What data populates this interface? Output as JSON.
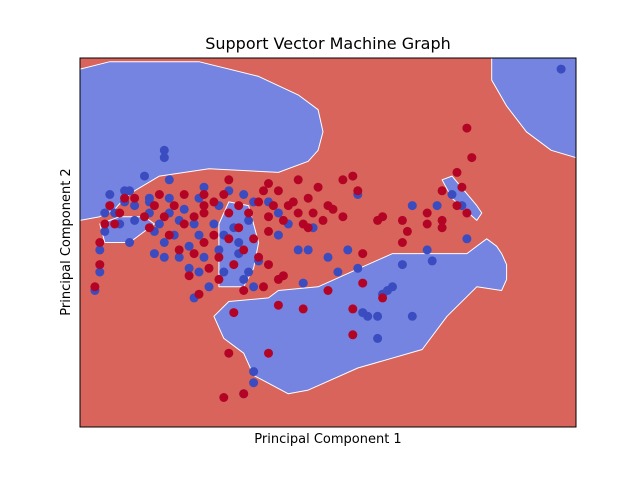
{
  "chart_data": {
    "type": "scatter",
    "title": "Support Vector Machine Graph",
    "xlabel": "Principal Component 1",
    "ylabel": "Principal Component 2",
    "xlim": [
      0,
      100
    ],
    "ylim": [
      0,
      100
    ],
    "x_ticks": false,
    "y_ticks": false,
    "grid": false,
    "background_region_color": "#d8645b",
    "decision_region_color": "#7484e0",
    "decision_regions": [
      [
        [
          0,
          56
        ],
        [
          0,
          97
        ],
        [
          6,
          99
        ],
        [
          24,
          99
        ],
        [
          36,
          95
        ],
        [
          44,
          90
        ],
        [
          48,
          86
        ],
        [
          49,
          80
        ],
        [
          48,
          75
        ],
        [
          46,
          72
        ],
        [
          40,
          69
        ],
        [
          26,
          70
        ],
        [
          16,
          68
        ],
        [
          11,
          64
        ],
        [
          9,
          62
        ],
        [
          7,
          59
        ],
        [
          4,
          57
        ]
      ],
      [
        [
          83,
          100
        ],
        [
          100,
          100
        ],
        [
          100,
          73
        ],
        [
          95,
          75
        ],
        [
          90,
          80
        ],
        [
          86,
          87
        ],
        [
          83,
          94
        ]
      ],
      [
        [
          27,
          30
        ],
        [
          29,
          24
        ],
        [
          31,
          22
        ],
        [
          33,
          20
        ],
        [
          35,
          14
        ],
        [
          42,
          9
        ],
        [
          46,
          10
        ],
        [
          56,
          16
        ],
        [
          69,
          21
        ],
        [
          74,
          30
        ],
        [
          80,
          38
        ],
        [
          85,
          37
        ],
        [
          86,
          40
        ],
        [
          86,
          44
        ],
        [
          85,
          47
        ],
        [
          84,
          49
        ],
        [
          82,
          51
        ],
        [
          78,
          47
        ],
        [
          72,
          47
        ],
        [
          63,
          47
        ],
        [
          58,
          44
        ],
        [
          48,
          38
        ],
        [
          40,
          37
        ],
        [
          38,
          35
        ],
        [
          30,
          34
        ]
      ],
      [
        [
          73,
          67
        ],
        [
          75,
          68
        ],
        [
          80,
          60
        ],
        [
          81,
          58
        ],
        [
          80,
          56
        ],
        [
          75,
          62
        ]
      ],
      [
        [
          28,
          38
        ],
        [
          33,
          38
        ],
        [
          35,
          43
        ],
        [
          36,
          50
        ],
        [
          34,
          60
        ],
        [
          30,
          61
        ],
        [
          28,
          55
        ]
      ],
      [
        [
          4,
          55
        ],
        [
          8,
          57
        ],
        [
          13,
          57
        ],
        [
          15,
          55
        ],
        [
          10,
          50
        ],
        [
          5,
          50
        ]
      ]
    ],
    "series": [
      {
        "color": "#3a4cc0",
        "points": [
          [
            3,
            37
          ],
          [
            4,
            42
          ],
          [
            4,
            48
          ],
          [
            5,
            53
          ],
          [
            5,
            58
          ],
          [
            6,
            63
          ],
          [
            7,
            58
          ],
          [
            8,
            55
          ],
          [
            9,
            61
          ],
          [
            9,
            64
          ],
          [
            10,
            64
          ],
          [
            11,
            60
          ],
          [
            13,
            68
          ],
          [
            14,
            62
          ],
          [
            14,
            58
          ],
          [
            15,
            53
          ],
          [
            16,
            55
          ],
          [
            17,
            50
          ],
          [
            17,
            75
          ],
          [
            17,
            73
          ],
          [
            18,
            67
          ],
          [
            18,
            62
          ],
          [
            18,
            58
          ],
          [
            19,
            52
          ],
          [
            20,
            56
          ],
          [
            20,
            46
          ],
          [
            21,
            59
          ],
          [
            22,
            49
          ],
          [
            22,
            43
          ],
          [
            23,
            55
          ],
          [
            23,
            35
          ],
          [
            24,
            62
          ],
          [
            24,
            52
          ],
          [
            24,
            42
          ],
          [
            25,
            65
          ],
          [
            25,
            46
          ],
          [
            26,
            38
          ],
          [
            27,
            55
          ],
          [
            28,
            48
          ],
          [
            28,
            60
          ],
          [
            29,
            52
          ],
          [
            29,
            42
          ],
          [
            30,
            64
          ],
          [
            31,
            54
          ],
          [
            32,
            50
          ],
          [
            32,
            47
          ],
          [
            33,
            40
          ],
          [
            33,
            63
          ],
          [
            34,
            56
          ],
          [
            35,
            61
          ],
          [
            34,
            42
          ],
          [
            36,
            45
          ],
          [
            35,
            38
          ],
          [
            38,
            61
          ],
          [
            40,
            58
          ],
          [
            40,
            52
          ],
          [
            42,
            55
          ],
          [
            44,
            48
          ],
          [
            45,
            39
          ],
          [
            46,
            48
          ],
          [
            47,
            54
          ],
          [
            50,
            46
          ],
          [
            52,
            42
          ],
          [
            54,
            48
          ],
          [
            56,
            63
          ],
          [
            56,
            43
          ],
          [
            57,
            31
          ],
          [
            58,
            30
          ],
          [
            60,
            24
          ],
          [
            60,
            30
          ],
          [
            61,
            36
          ],
          [
            62,
            37
          ],
          [
            63,
            38
          ],
          [
            65,
            44
          ],
          [
            67,
            30
          ],
          [
            71,
            45
          ],
          [
            67,
            60
          ],
          [
            72,
            60
          ],
          [
            77,
            60
          ],
          [
            78,
            51
          ],
          [
            75,
            63
          ],
          [
            70,
            48
          ],
          [
            35,
            15
          ],
          [
            35,
            12
          ],
          [
            33,
            9
          ],
          [
            97,
            97
          ],
          [
            14,
            61
          ],
          [
            11,
            56
          ],
          [
            10,
            50
          ],
          [
            15,
            47
          ],
          [
            17,
            46
          ]
        ]
      },
      {
        "color": "#b40426",
        "points": [
          [
            3,
            38
          ],
          [
            4,
            44
          ],
          [
            4,
            50
          ],
          [
            5,
            55
          ],
          [
            6,
            60
          ],
          [
            7,
            55
          ],
          [
            8,
            58
          ],
          [
            9,
            62
          ],
          [
            11,
            62
          ],
          [
            13,
            57
          ],
          [
            14,
            54
          ],
          [
            15,
            60
          ],
          [
            16,
            63
          ],
          [
            17,
            57
          ],
          [
            18,
            52
          ],
          [
            19,
            60
          ],
          [
            20,
            48
          ],
          [
            21,
            63
          ],
          [
            21,
            55
          ],
          [
            22,
            41
          ],
          [
            23,
            57
          ],
          [
            23,
            47
          ],
          [
            24,
            36
          ],
          [
            25,
            58
          ],
          [
            25,
            60
          ],
          [
            25,
            50
          ],
          [
            26,
            43
          ],
          [
            27,
            61
          ],
          [
            27,
            52
          ],
          [
            28,
            40
          ],
          [
            28,
            46
          ],
          [
            29,
            63
          ],
          [
            30,
            58
          ],
          [
            30,
            51
          ],
          [
            31,
            44
          ],
          [
            32,
            60
          ],
          [
            32,
            54
          ],
          [
            33,
            37
          ],
          [
            33,
            48
          ],
          [
            34,
            58
          ],
          [
            35,
            51
          ],
          [
            36,
            61
          ],
          [
            36,
            46
          ],
          [
            37,
            64
          ],
          [
            38,
            53
          ],
          [
            38,
            57
          ],
          [
            39,
            60
          ],
          [
            40,
            64
          ],
          [
            41,
            56
          ],
          [
            42,
            60
          ],
          [
            43,
            61
          ],
          [
            44,
            58
          ],
          [
            45,
            55
          ],
          [
            46,
            54
          ],
          [
            46,
            62
          ],
          [
            47,
            58
          ],
          [
            48,
            65
          ],
          [
            49,
            56
          ],
          [
            50,
            60
          ],
          [
            50,
            37
          ],
          [
            40,
            33
          ],
          [
            40,
            40
          ],
          [
            38,
            44
          ],
          [
            31,
            31
          ],
          [
            30,
            20
          ],
          [
            29,
            8
          ],
          [
            33,
            9
          ],
          [
            37,
            38
          ],
          [
            41,
            41
          ],
          [
            45,
            32
          ],
          [
            53,
            57
          ],
          [
            55,
            68
          ],
          [
            57,
            47
          ],
          [
            57,
            39
          ],
          [
            55,
            32
          ],
          [
            60,
            56
          ],
          [
            61,
            57
          ],
          [
            65,
            56
          ],
          [
            65,
            50
          ],
          [
            66,
            53
          ],
          [
            70,
            55
          ],
          [
            73,
            56
          ],
          [
            76,
            60
          ],
          [
            77,
            65
          ],
          [
            78,
            58
          ],
          [
            73,
            54
          ],
          [
            61,
            35
          ],
          [
            55,
            25
          ],
          [
            51,
            59
          ],
          [
            56,
            64
          ],
          [
            73,
            64
          ],
          [
            76,
            69
          ],
          [
            70,
            58
          ],
          [
            44,
            67
          ],
          [
            38,
            66
          ],
          [
            30,
            67
          ],
          [
            25,
            63
          ],
          [
            53,
            67
          ],
          [
            79,
            73
          ],
          [
            78,
            81
          ],
          [
            38,
            20
          ]
        ]
      }
    ]
  }
}
